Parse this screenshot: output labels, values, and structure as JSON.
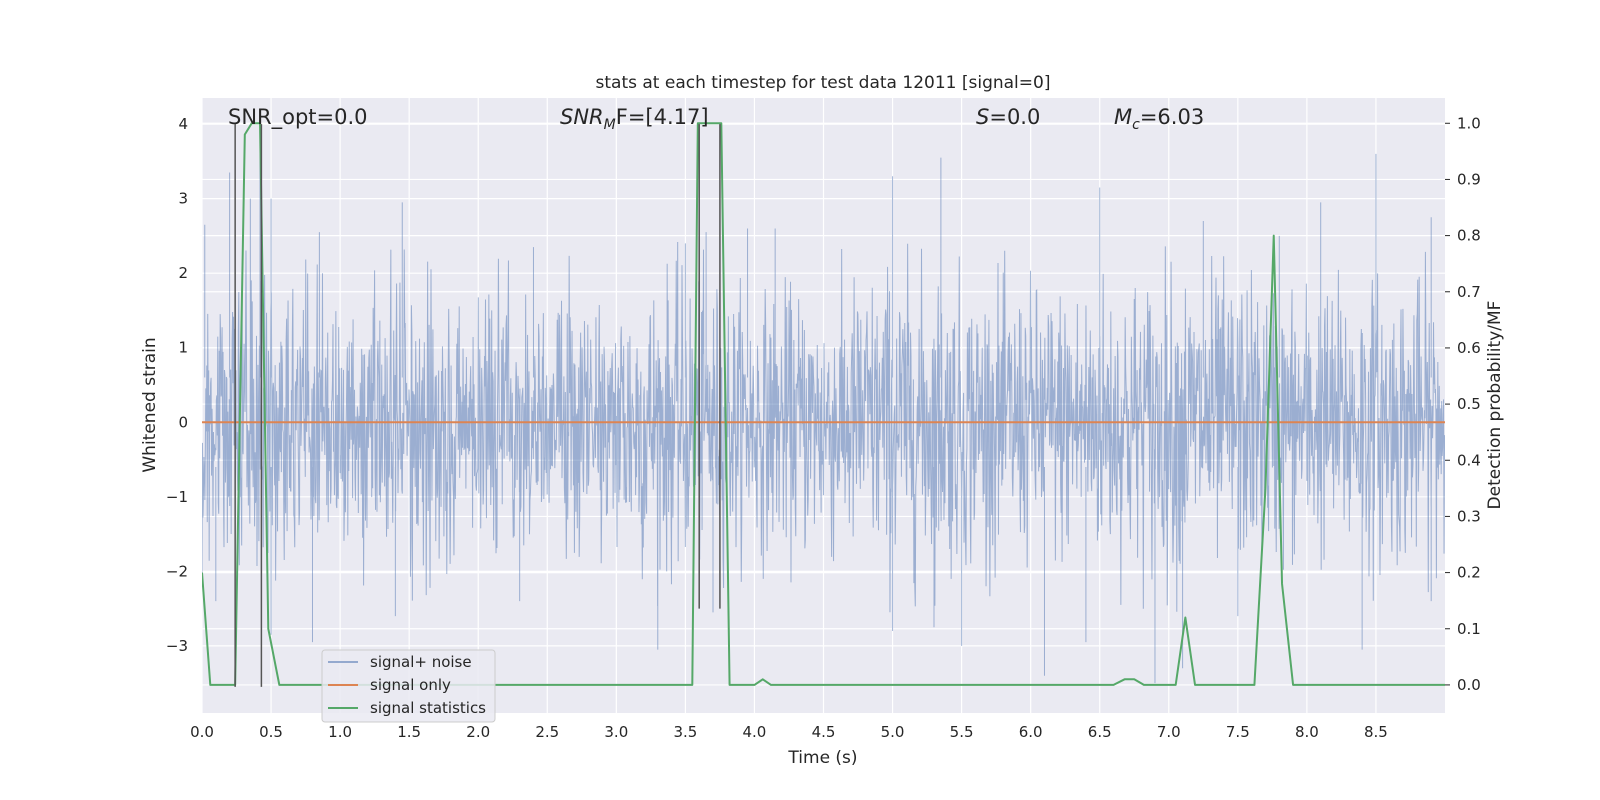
{
  "chart_data": {
    "type": "line",
    "title": "stats at each timestep for test data 12011 [signal=0]",
    "xlabel": "Time (s)",
    "ylabel_left": "Whitened strain",
    "ylabel_right": "Detection probability/MF",
    "xlim": [
      0,
      9
    ],
    "ylim_left": [
      -3.9,
      4.35
    ],
    "ylim_right": [
      -0.05,
      1.045
    ],
    "x_ticks": [
      "0.0",
      "0.5",
      "1.0",
      "1.5",
      "2.0",
      "2.5",
      "3.0",
      "3.5",
      "4.0",
      "4.5",
      "5.0",
      "5.5",
      "6.0",
      "6.5",
      "7.0",
      "7.5",
      "8.0",
      "8.5"
    ],
    "y_ticks_left": [
      "4",
      "3",
      "2",
      "1",
      "0",
      "−1",
      "−2",
      "−3"
    ],
    "y_ticks_right": [
      "1.0",
      "0.9",
      "0.8",
      "0.7",
      "0.6",
      "0.5",
      "0.4",
      "0.3",
      "0.2",
      "0.1",
      "0.0"
    ],
    "grid": true,
    "legend_position": "lower-left",
    "annotations": {
      "snr_opt": "SNR_opt=0.0",
      "snr_mf_italic": "SNR",
      "snr_mf_sub": "M",
      "snr_mf_rest": "F=[4.17]",
      "s_italic": "S",
      "s_rest": "=0.0",
      "mc_italic": "M",
      "mc_sub": "c",
      "mc_rest": "=6.03"
    },
    "series": [
      {
        "name": "signal+ noise",
        "axis": "left",
        "style": "noise",
        "color": "#4c72b0",
        "envelope": [
          [
            0.0,
            1.4
          ],
          [
            0.5,
            1.5
          ],
          [
            1.0,
            1.3
          ],
          [
            1.5,
            1.5
          ],
          [
            2.0,
            1.4
          ],
          [
            2.5,
            1.3
          ],
          [
            3.0,
            1.6
          ],
          [
            3.5,
            1.5
          ],
          [
            4.0,
            1.3
          ],
          [
            4.5,
            1.4
          ],
          [
            5.0,
            1.6
          ],
          [
            5.5,
            1.5
          ],
          [
            6.0,
            1.4
          ],
          [
            6.5,
            1.5
          ],
          [
            7.0,
            1.6
          ],
          [
            7.5,
            1.5
          ],
          [
            8.0,
            1.4
          ],
          [
            8.5,
            1.5
          ],
          [
            9.0,
            1.4
          ]
        ],
        "peaks": [
          [
            0.02,
            2.65
          ],
          [
            0.2,
            3.35
          ],
          [
            0.35,
            3.0
          ],
          [
            0.42,
            4.05
          ],
          [
            0.5,
            3.0
          ],
          [
            0.85,
            2.55
          ],
          [
            1.45,
            2.95
          ],
          [
            2.4,
            2.35
          ],
          [
            3.5,
            2.4
          ],
          [
            3.65,
            2.55
          ],
          [
            3.95,
            2.6
          ],
          [
            4.15,
            2.6
          ],
          [
            5.0,
            3.3
          ],
          [
            5.35,
            3.55
          ],
          [
            6.5,
            3.15
          ],
          [
            7.25,
            2.7
          ],
          [
            7.8,
            2.5
          ],
          [
            8.1,
            2.95
          ],
          [
            8.5,
            3.6
          ],
          [
            8.9,
            2.75
          ]
        ],
        "troughs": [
          [
            0.1,
            -2.4
          ],
          [
            0.5,
            -2.85
          ],
          [
            0.8,
            -2.95
          ],
          [
            1.4,
            -2.6
          ],
          [
            2.3,
            -2.4
          ],
          [
            3.3,
            -3.05
          ],
          [
            3.7,
            -2.55
          ],
          [
            5.0,
            -2.8
          ],
          [
            5.3,
            -2.75
          ],
          [
            5.5,
            -3.0
          ],
          [
            6.1,
            -3.4
          ],
          [
            6.4,
            -2.95
          ],
          [
            6.9,
            -3.5
          ],
          [
            7.1,
            -3.3
          ],
          [
            7.5,
            -2.6
          ],
          [
            8.4,
            -3.05
          ],
          [
            8.9,
            -2.4
          ]
        ]
      },
      {
        "name": "signal only",
        "axis": "left",
        "style": "line",
        "color": "#dd8452",
        "x": [
          0,
          9
        ],
        "y": [
          0,
          0
        ]
      },
      {
        "name": "signal statistics",
        "axis": "right",
        "style": "line",
        "color": "#55a868",
        "x": [
          0.0,
          0.06,
          0.24,
          0.31,
          0.36,
          0.42,
          0.48,
          0.56,
          3.55,
          3.59,
          3.64,
          3.76,
          3.82,
          3.92,
          4.0,
          4.06,
          4.12,
          4.2,
          6.6,
          6.68,
          6.75,
          6.82,
          7.05,
          7.12,
          7.19,
          7.24,
          7.62,
          7.7,
          7.76,
          7.82,
          7.9,
          9.0
        ],
        "y": [
          0.2,
          0.0,
          0.0,
          0.98,
          1.0,
          1.0,
          0.1,
          0.0,
          0.0,
          1.0,
          1.0,
          1.0,
          0.0,
          0.0,
          0.0,
          0.01,
          0.0,
          0.0,
          0.0,
          0.01,
          0.01,
          0.0,
          0.0,
          0.12,
          0.0,
          0.0,
          0.0,
          0.35,
          0.8,
          0.18,
          0.0,
          0.0
        ]
      },
      {
        "name": "",
        "axis": "left",
        "style": "line",
        "color": "#555555",
        "x": [
          0.24,
          0.24
        ],
        "y": [
          -3.55,
          4.0
        ]
      },
      {
        "name": "",
        "axis": "left",
        "style": "line",
        "color": "#555555",
        "x": [
          0.43,
          0.43
        ],
        "y": [
          -3.55,
          4.0
        ]
      },
      {
        "name": "",
        "axis": "left",
        "style": "line",
        "color": "#555555",
        "x": [
          3.6,
          3.6
        ],
        "y": [
          -2.5,
          4.0
        ]
      },
      {
        "name": "",
        "axis": "left",
        "style": "line",
        "color": "#555555",
        "x": [
          3.75,
          3.75
        ],
        "y": [
          -2.5,
          4.0
        ]
      }
    ]
  }
}
